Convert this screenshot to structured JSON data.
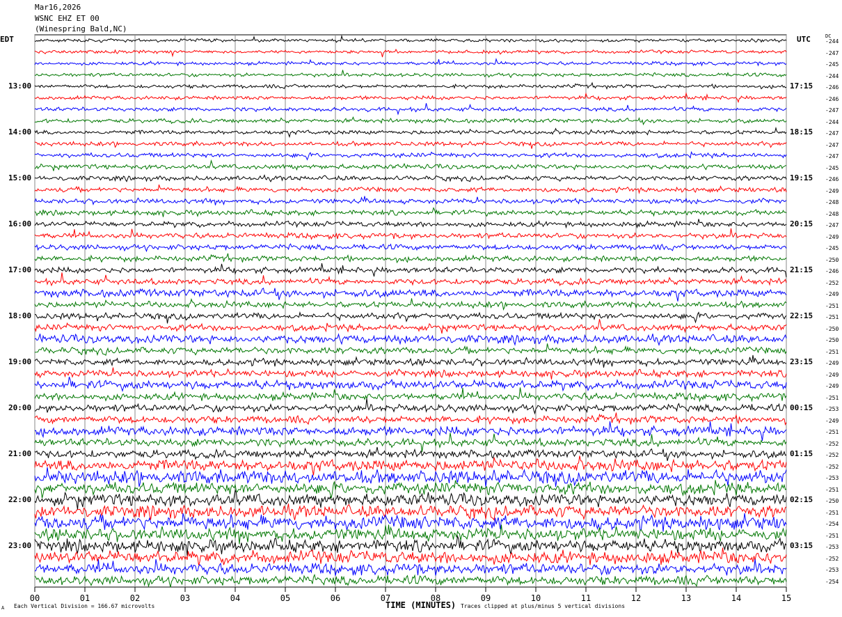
{
  "header": {
    "date": "Mar16,2026",
    "station": "WSNC EHZ ET 00",
    "location": "(Winespring Bald,NC)"
  },
  "left_axis_title": "EDT",
  "right_axis_title": "UTC",
  "dc_title": "DC",
  "footer": {
    "scale_note": "Each Vertical Division = 166.67 microvolts",
    "xlabel": "TIME (MINUTES)",
    "clip_note": "Traces clipped at plus/minus 5 vertical divisions",
    "corner_mark": "A"
  },
  "chart_data": {
    "type": "line",
    "subtype": "helicorder",
    "xlabel": "TIME (MINUTES)",
    "xlim": [
      0,
      15
    ],
    "x_ticks": [
      "00",
      "01",
      "02",
      "03",
      "04",
      "05",
      "06",
      "07",
      "08",
      "09",
      "10",
      "11",
      "12",
      "13",
      "14",
      "15"
    ],
    "grid": "vertical lines each minute",
    "trace_colors": [
      "#000000",
      "#ff0000",
      "#0000ff",
      "#007700"
    ],
    "left_labels": [
      "13:00",
      "14:00",
      "15:00",
      "16:00",
      "17:00",
      "18:00",
      "19:00",
      "20:00",
      "21:00",
      "22:00",
      "23:00"
    ],
    "right_labels": [
      "17:15",
      "18:15",
      "19:15",
      "20:15",
      "21:15",
      "22:15",
      "23:15",
      "00:15",
      "01:15",
      "02:15",
      "03:15"
    ],
    "rows_per_hour": 4,
    "row_count": 48,
    "dc_offsets": [
      -244,
      -247,
      -245,
      -244,
      -246,
      -246,
      -247,
      -244,
      -247,
      -247,
      -247,
      -245,
      -246,
      -249,
      -248,
      -248,
      -247,
      -249,
      -245,
      -250,
      -246,
      -252,
      -249,
      -251,
      -251,
      -250,
      -250,
      -251,
      -249,
      -249,
      -249,
      -251,
      -253,
      -249,
      -251,
      -252,
      -252,
      -252,
      -253,
      -251,
      -250,
      -251,
      -254,
      -251,
      -253,
      -252,
      -253,
      -254
    ]
  }
}
